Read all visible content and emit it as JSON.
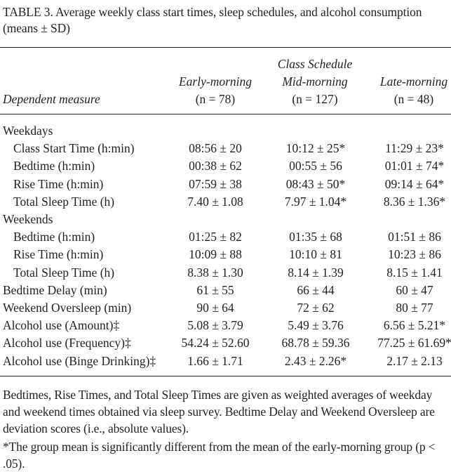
{
  "title": "TABLE 3.  Average weekly class start times, sleep schedules, and alcohol consumption (means ± SD)",
  "header": {
    "group_label": "Class Schedule",
    "dependent_measure": "Dependent measure",
    "columns": [
      {
        "name": "Early-morning",
        "n": "(n = 78)"
      },
      {
        "name": "Mid-morning",
        "n": "(n = 127)"
      },
      {
        "name": "Late-morning",
        "n": "(n = 48)"
      }
    ]
  },
  "rows": [
    {
      "label": "Weekdays",
      "values": [
        "",
        "",
        ""
      ]
    },
    {
      "label": "Class Start Time (h:min)",
      "values": [
        "08:56 ± 20",
        "10:12 ± 25*",
        "11:29 ± 23*"
      ]
    },
    {
      "label": "Bedtime (h:min)",
      "values": [
        "00:38 ± 62",
        "00:55 ± 56",
        "01:01 ± 74*"
      ]
    },
    {
      "label": "Rise Time (h:min)",
      "values": [
        "07:59 ± 38",
        "08:43 ± 50*",
        "09:14 ± 64*"
      ]
    },
    {
      "label": "Total Sleep Time (h)",
      "values": [
        "7.40 ± 1.08",
        "7.97 ± 1.04*",
        "8.36 ± 1.36*"
      ]
    },
    {
      "label": "Weekends",
      "values": [
        "",
        "",
        ""
      ]
    },
    {
      "label": "Bedtime (h:min)",
      "values": [
        "01:25 ± 82",
        "01:35 ± 68",
        "01:51 ± 86"
      ]
    },
    {
      "label": "Rise Time (h:min)",
      "values": [
        "10:09 ± 88",
        "10:10 ± 81",
        "10:23 ± 86"
      ]
    },
    {
      "label": "Total Sleep Time (h)",
      "values": [
        "8.38 ± 1.30",
        "8.14 ± 1.39",
        "8.15 ± 1.41"
      ]
    },
    {
      "label": "Bedtime Delay (min)",
      "values": [
        "61 ± 55",
        "66 ± 44",
        "60 ± 47"
      ]
    },
    {
      "label": "Weekend Oversleep (min)",
      "values": [
        "90 ± 64",
        "72 ± 62",
        "80 ± 77"
      ]
    },
    {
      "label": "Alcohol use (Amount)‡",
      "values": [
        "5.08 ± 3.79",
        "5.49 ± 3.76",
        "6.56 ± 5.21*"
      ]
    },
    {
      "label": "Alcohol use (Frequency)‡",
      "values": [
        "54.24 ± 52.60",
        "68.78 ± 59.36",
        "77.25 ± 61.69*"
      ]
    },
    {
      "label": "Alcohol use (Binge Drinking)‡",
      "values": [
        "1.66 ± 1.71",
        "2.43 ± 2.26*",
        "2.17 ± 2.13"
      ]
    }
  ],
  "notes": {
    "main": "Bedtimes, Rise Times, and Total Sleep Times are given as weighted averages of weekday and weekend times obtained via sleep survey. Bedtime Delay and Weekend Oversleep are deviation scores (i.e., absolute values).",
    "significance": "*The group mean is significantly different from the mean of the early-morning group (p < .05)."
  }
}
